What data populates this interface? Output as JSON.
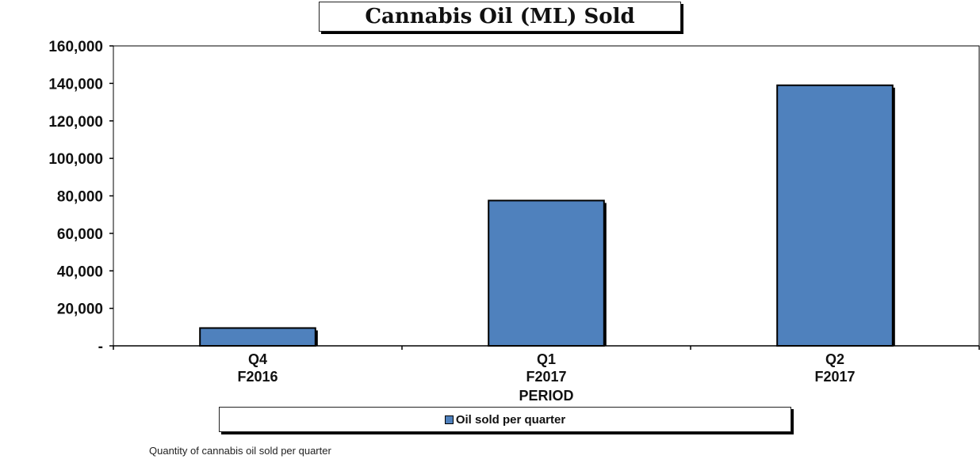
{
  "chart_data": {
    "type": "bar",
    "title": "Cannabis Oil (ML) Sold",
    "xlabel": "PERIOD",
    "ylabel": "",
    "ylim": [
      0,
      160000
    ],
    "yticks": [
      {
        "value": 0,
        "label": "-"
      },
      {
        "value": 20000,
        "label": "20,000"
      },
      {
        "value": 40000,
        "label": "40,000"
      },
      {
        "value": 60000,
        "label": "60,000"
      },
      {
        "value": 80000,
        "label": "80,000"
      },
      {
        "value": 100000,
        "label": "100,000"
      },
      {
        "value": 120000,
        "label": "120,000"
      },
      {
        "value": 140000,
        "label": "140,000"
      },
      {
        "value": 160000,
        "label": "160,000"
      }
    ],
    "categories": [
      [
        "Q4",
        "F2016"
      ],
      [
        "Q1",
        "F2017"
      ],
      [
        "Q2",
        "F2017"
      ]
    ],
    "series": [
      {
        "name": "Oil sold per quarter",
        "values": [
          9500,
          77500,
          139000
        ],
        "color": "#4f81bd"
      }
    ],
    "grid": false,
    "legend_position": "bottom"
  },
  "caption": "Quantity of cannabis oil sold per quarter"
}
